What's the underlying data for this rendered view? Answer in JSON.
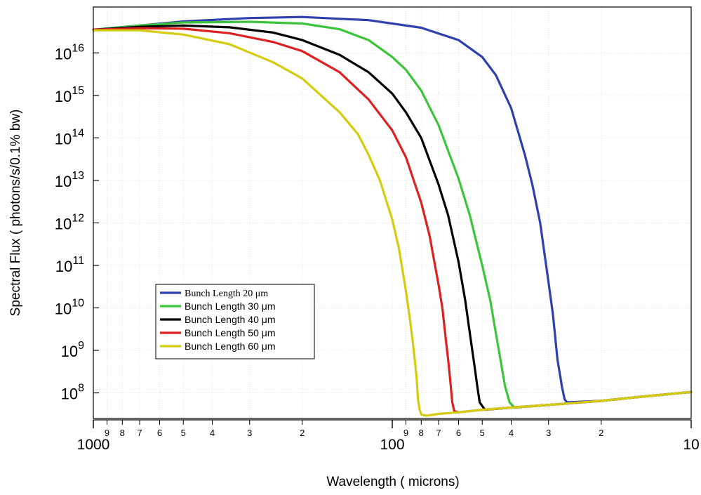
{
  "chart_data": {
    "type": "line",
    "xlabel": "Wavelength ( microns)",
    "ylabel": "Spectral Flux ( photons/s/0.1% bw)",
    "x_scale": "log",
    "x_reversed": true,
    "y_scale": "log",
    "xlim": [
      1000,
      10
    ],
    "ylim": [
      25000000.0,
      1.2e+17
    ],
    "grid": true,
    "legend_position": "lower-left",
    "x_major_ticks": [
      {
        "value": 1000,
        "label": "1000"
      },
      {
        "value": 100,
        "label": "100"
      },
      {
        "value": 10,
        "label": "10"
      }
    ],
    "x_minor_ticks": [
      {
        "value": 900,
        "label": "9"
      },
      {
        "value": 800,
        "label": "8"
      },
      {
        "value": 700,
        "label": "7"
      },
      {
        "value": 600,
        "label": "6"
      },
      {
        "value": 500,
        "label": "5"
      },
      {
        "value": 400,
        "label": "4"
      },
      {
        "value": 300,
        "label": "3"
      },
      {
        "value": 200,
        "label": "2"
      },
      {
        "value": 90,
        "label": "9"
      },
      {
        "value": 80,
        "label": "8"
      },
      {
        "value": 70,
        "label": "7"
      },
      {
        "value": 60,
        "label": "6"
      },
      {
        "value": 50,
        "label": "5"
      },
      {
        "value": 40,
        "label": "4"
      },
      {
        "value": 30,
        "label": "3"
      },
      {
        "value": 20,
        "label": "2"
      }
    ],
    "y_ticks": [
      {
        "value": 100000000.0,
        "mantissa": "10",
        "exponent": "8"
      },
      {
        "value": 1000000000.0,
        "mantissa": "10",
        "exponent": "9"
      },
      {
        "value": 10000000000.0,
        "mantissa": "10",
        "exponent": "10"
      },
      {
        "value": 100000000000.0,
        "mantissa": "10",
        "exponent": "11"
      },
      {
        "value": 1000000000000.0,
        "mantissa": "10",
        "exponent": "12"
      },
      {
        "value": 10000000000000.0,
        "mantissa": "10",
        "exponent": "13"
      },
      {
        "value": 100000000000000.0,
        "mantissa": "10",
        "exponent": "14"
      },
      {
        "value": 1000000000000000.0,
        "mantissa": "10",
        "exponent": "15"
      },
      {
        "value": 1e+16,
        "mantissa": "10",
        "exponent": "16"
      }
    ],
    "series": [
      {
        "name": "Bunch Length 20 μm",
        "color": "#2e3fae",
        "points": [
          [
            1000,
            3.5e+16
          ],
          [
            700,
            4.4e+16
          ],
          [
            500,
            5.5e+16
          ],
          [
            300,
            6.6e+16
          ],
          [
            200,
            7e+16
          ],
          [
            120,
            5.9e+16
          ],
          [
            80,
            3.9e+16
          ],
          [
            60,
            2e+16
          ],
          [
            50,
            8000000000000000.0
          ],
          [
            45,
            3000000000000000.0
          ],
          [
            40,
            500000000000000.0
          ],
          [
            36,
            40000000000000.0
          ],
          [
            34,
            8000000000000.0
          ],
          [
            32,
            1000000000000.0
          ],
          [
            30,
            40000000000.0
          ],
          [
            29,
            7000000000.0
          ],
          [
            28,
            600000000.0
          ],
          [
            27,
            130000000.0
          ],
          [
            26.5,
            70000000.0
          ],
          [
            26,
            60000000.0
          ],
          [
            20,
            65000000.0
          ],
          [
            15,
            80000000.0
          ],
          [
            10,
            105000000.0
          ]
        ]
      },
      {
        "name": "Bunch Length 30 μm",
        "color": "#3cc43c",
        "points": [
          [
            1000,
            3.5e+16
          ],
          [
            700,
            4.4e+16
          ],
          [
            500,
            5.2e+16
          ],
          [
            300,
            5.4e+16
          ],
          [
            200,
            4.9e+16
          ],
          [
            150,
            3.6e+16
          ],
          [
            120,
            2e+16
          ],
          [
            100,
            8000000000000000.0
          ],
          [
            90,
            4000000000000000.0
          ],
          [
            80,
            1300000000000000.0
          ],
          [
            70,
            200000000000000.0
          ],
          [
            60,
            11000000000000.0
          ],
          [
            55,
            1500000000000.0
          ],
          [
            50,
            100000000000.0
          ],
          [
            47,
            15000000000.0
          ],
          [
            45,
            2500000000.0
          ],
          [
            43,
            400000000.0
          ],
          [
            42,
            150000000.0
          ],
          [
            40.5,
            60000000.0
          ],
          [
            39,
            45000000.0
          ],
          [
            30,
            52000000.0
          ],
          [
            20,
            65000000.0
          ],
          [
            15,
            80000000.0
          ],
          [
            10,
            105000000.0
          ]
        ]
      },
      {
        "name": "Bunch Length 40 μm",
        "color": "#000000",
        "points": [
          [
            1000,
            3.5e+16
          ],
          [
            700,
            4.1e+16
          ],
          [
            500,
            4.4e+16
          ],
          [
            350,
            4e+16
          ],
          [
            250,
            3e+16
          ],
          [
            200,
            2e+16
          ],
          [
            150,
            9000000000000000.0
          ],
          [
            120,
            3500000000000000.0
          ],
          [
            100,
            1100000000000000.0
          ],
          [
            90,
            400000000000000.0
          ],
          [
            80,
            100000000000000.0
          ],
          [
            70,
            8000000000000.0
          ],
          [
            65,
            1500000000000.0
          ],
          [
            60,
            120000000000.0
          ],
          [
            57,
            15000000000.0
          ],
          [
            55,
            2500000000.0
          ],
          [
            53,
            400000000.0
          ],
          [
            52,
            150000000.0
          ],
          [
            51,
            60000000.0
          ],
          [
            49,
            40000000.0
          ],
          [
            40,
            45000000.0
          ],
          [
            30,
            52000000.0
          ],
          [
            20,
            65000000.0
          ],
          [
            15,
            80000000.0
          ],
          [
            10,
            105000000.0
          ]
        ]
      },
      {
        "name": "Bunch Length 50 μm",
        "color": "#dd2020",
        "points": [
          [
            1000,
            3.5e+16
          ],
          [
            700,
            3.8e+16
          ],
          [
            500,
            3.7e+16
          ],
          [
            350,
            2.9e+16
          ],
          [
            250,
            1.8e+16
          ],
          [
            200,
            1.1e+16
          ],
          [
            150,
            3500000000000000.0
          ],
          [
            120,
            800000000000000.0
          ],
          [
            100,
            150000000000000.0
          ],
          [
            90,
            35000000000000.0
          ],
          [
            80,
            3000000000000.0
          ],
          [
            75,
            500000000000.0
          ],
          [
            70,
            35000000000.0
          ],
          [
            68,
            10000000000.0
          ],
          [
            66,
            1500000000.0
          ],
          [
            65,
            600000000.0
          ],
          [
            64,
            200000000.0
          ],
          [
            63,
            60000000.0
          ],
          [
            62,
            37000000.0
          ],
          [
            60,
            35000000.0
          ],
          [
            50,
            40000000.0
          ],
          [
            40,
            45000000.0
          ],
          [
            30,
            52000000.0
          ],
          [
            20,
            65000000.0
          ],
          [
            15,
            80000000.0
          ],
          [
            10,
            105000000.0
          ]
        ]
      },
      {
        "name": "Bunch Length 60 μm",
        "color": "#d4cc10",
        "points": [
          [
            1000,
            3.4e+16
          ],
          [
            700,
            3.4e+16
          ],
          [
            500,
            2.7e+16
          ],
          [
            350,
            1.6e+16
          ],
          [
            250,
            6000000000000000.0
          ],
          [
            200,
            2500000000000000.0
          ],
          [
            150,
            400000000000000.0
          ],
          [
            130,
            120000000000000.0
          ],
          [
            120,
            40000000000000.0
          ],
          [
            110,
            10000000000000.0
          ],
          [
            100,
            1200000000000.0
          ],
          [
            95,
            250000000000.0
          ],
          [
            90,
            25000000000.0
          ],
          [
            87,
            4500000000.0
          ],
          [
            85,
            1200000000.0
          ],
          [
            83,
            250000000.0
          ],
          [
            82,
            70000000.0
          ],
          [
            81,
            40000000.0
          ],
          [
            80,
            31000000.0
          ],
          [
            77,
            29000000.0
          ],
          [
            70,
            32000000.0
          ],
          [
            60,
            35000000.0
          ],
          [
            50,
            40000000.0
          ],
          [
            40,
            45000000.0
          ],
          [
            30,
            52000000.0
          ],
          [
            20,
            65000000.0
          ],
          [
            15,
            80000000.0
          ],
          [
            10,
            105000000.0
          ]
        ]
      }
    ]
  }
}
